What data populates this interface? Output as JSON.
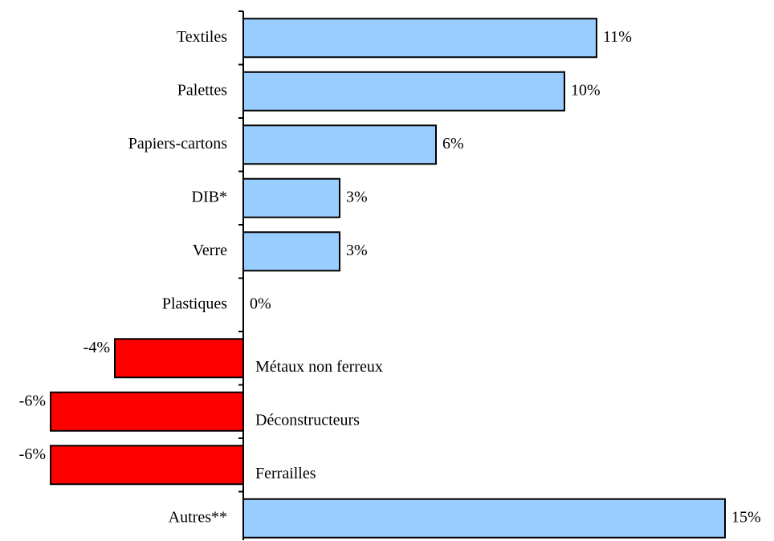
{
  "chart_data": {
    "type": "hbar",
    "categories": [
      "Textiles",
      "Palettes",
      "Papiers-cartons",
      "DIB*",
      "Verre",
      "Plastiques",
      "Métaux non ferreux",
      "Déconstructeurs",
      "Ferrailles",
      "Autres**"
    ],
    "values": [
      11,
      10,
      6,
      3,
      3,
      0,
      -4,
      -6,
      -6,
      15
    ],
    "value_labels": [
      "11%",
      "10%",
      "6%",
      "3%",
      "3%",
      "0%",
      "-4%",
      "-6%",
      "-6%",
      "15%"
    ],
    "colors": [
      "#99ccff",
      "#99ccff",
      "#99ccff",
      "#99ccff",
      "#99ccff",
      "#99ccff",
      "#ff0000",
      "#ff0000",
      "#ff0000",
      "#99ccff"
    ],
    "xlim": [
      -7.5,
      16.5
    ]
  }
}
